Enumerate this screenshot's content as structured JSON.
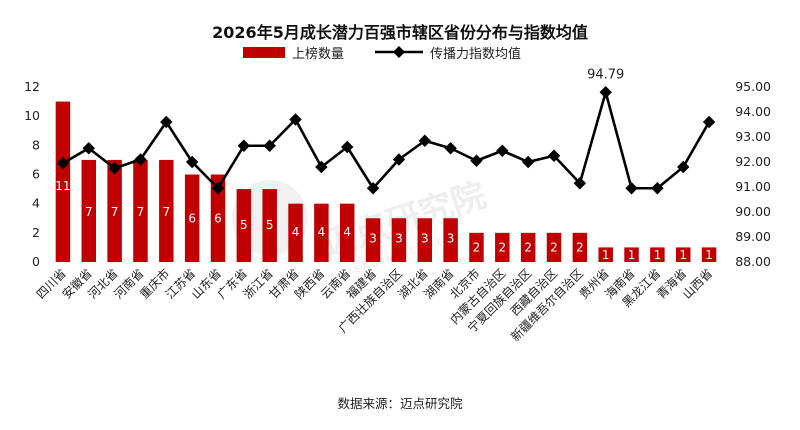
{
  "chart_data": {
    "type": "bar",
    "title": "2026年5月成长潜力百强市辖区省份分布与指数均值",
    "categories": [
      "四川省",
      "安徽省",
      "河北省",
      "河南省",
      "重庆市",
      "江苏省",
      "山东省",
      "广东省",
      "浙江省",
      "甘肃省",
      "陕西省",
      "云南省",
      "福建省",
      "广西壮族自治区",
      "湖北省",
      "湖南省",
      "北京市",
      "内蒙古自治区",
      "宁夏回族自治区",
      "西藏自治区",
      "新疆维吾尔自治区",
      "贵州省",
      "海南省",
      "黑龙江省",
      "青海省",
      "山西省"
    ],
    "series": [
      {
        "name": "上榜数量",
        "type": "bar",
        "axis": "left",
        "color": "#c00000",
        "values": [
          11,
          7,
          7,
          7,
          7,
          6,
          6,
          5,
          5,
          4,
          4,
          4,
          3,
          3,
          3,
          3,
          2,
          2,
          2,
          2,
          2,
          1,
          1,
          1,
          1,
          1
        ]
      },
      {
        "name": "传播力指数均值",
        "type": "line",
        "axis": "right",
        "color": "#000000",
        "marker": "diamond",
        "values": [
          91.95,
          92.55,
          91.75,
          92.1,
          93.6,
          92.0,
          90.95,
          92.65,
          92.65,
          93.7,
          91.8,
          92.6,
          90.95,
          92.1,
          92.85,
          92.55,
          92.05,
          92.45,
          92.0,
          92.25,
          91.15,
          94.79,
          90.95,
          90.95,
          91.8,
          93.6
        ]
      }
    ],
    "y_left": {
      "ylim": [
        0,
        12
      ],
      "ticks": [
        "0",
        "2",
        "4",
        "6",
        "8",
        "10",
        "12"
      ]
    },
    "y_right": {
      "ylim": [
        88,
        95
      ],
      "ticks": [
        "88.00",
        "89.00",
        "90.00",
        "91.00",
        "92.00",
        "93.00",
        "94.00",
        "95.00"
      ]
    },
    "annotations": [
      {
        "category": "贵州省",
        "text": "94.79"
      }
    ],
    "legend_placement": "top-center",
    "grid": false
  },
  "source_label": "数据来源：迈点研究院",
  "watermark": {
    "text": "迈点研究院",
    "sub": "MEADIN ACADEMY"
  }
}
